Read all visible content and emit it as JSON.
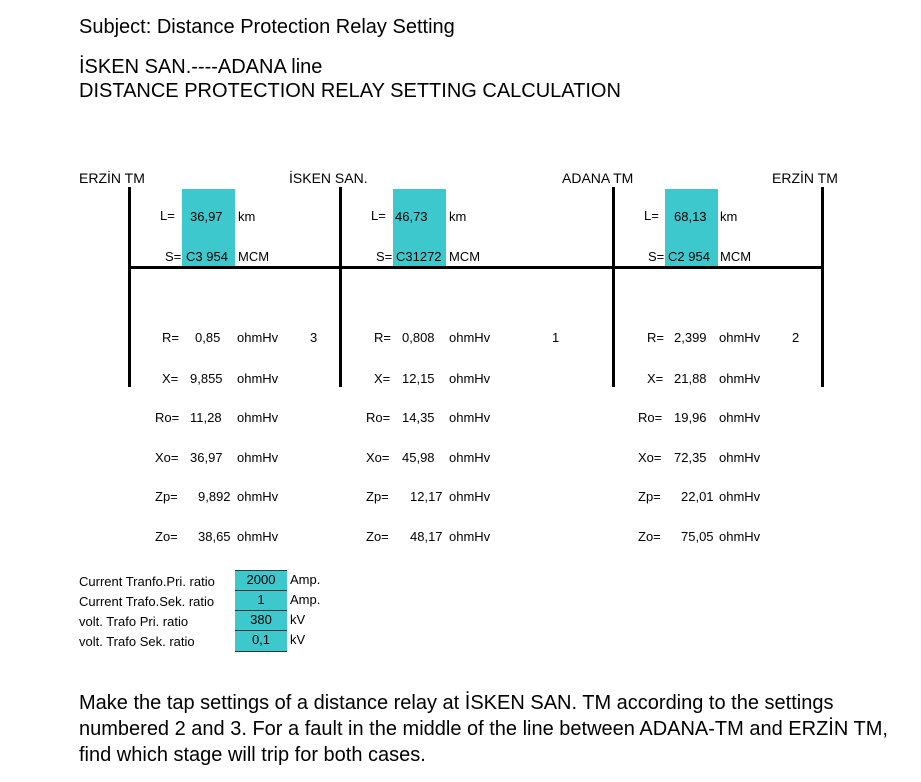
{
  "subject": "Subject: Distance Protection Relay Setting",
  "line_title": "İSKEN SAN.----ADANA line",
  "calc_title": "DISTANCE PROTECTION RELAY SETTING CALCULATION",
  "stations": {
    "erzin_left": "ERZİN   TM",
    "isken": "İSKEN SAN.",
    "adana": "ADANA TM",
    "erzin_right": "ERZİN   TM"
  },
  "sections": [
    {
      "L_label": "L=",
      "L_value": "36,97",
      "L_unit": "km",
      "S_label": "S=",
      "S_value": "C3 954",
      "S_unit": "MCM",
      "number": "3",
      "R_label": "R=",
      "R_value": "0,85",
      "R_unit": "ohmHv",
      "X_label": "X=",
      "X_value": "9,855",
      "X_unit": "ohmHv",
      "Ro_label": "Ro=",
      "Ro_value": "11,28",
      "Ro_unit": "ohmHv",
      "Xo_label": "Xo=",
      "Xo_value": "36,97",
      "Xo_unit": "ohmHv",
      "Zp_label": "Zp=",
      "Zp_value": "9,892",
      "Zp_unit": "ohmHv",
      "Zo_label": "Zo=",
      "Zo_value": "38,65",
      "Zo_unit": "ohmHv"
    },
    {
      "L_label": "L=",
      "L_value": "46,73",
      "L_unit": "km",
      "S_label": "S=",
      "S_value": "C31272",
      "S_unit": "MCM",
      "number": "1",
      "R_label": "R=",
      "R_value": "0,808",
      "R_unit": "ohmHv",
      "X_label": "X=",
      "X_value": "12,15",
      "X_unit": "ohmHv",
      "Ro_label": "Ro=",
      "Ro_value": "14,35",
      "Ro_unit": "ohmHv",
      "Xo_label": "Xo=",
      "Xo_value": "45,98",
      "Xo_unit": "ohmHv",
      "Zp_label": "Zp=",
      "Zp_value": "12,17",
      "Zp_unit": "ohmHv",
      "Zo_label": "Zo=",
      "Zo_value": "48,17",
      "Zo_unit": "ohmHv"
    },
    {
      "L_label": "L=",
      "L_value": "68,13",
      "L_unit": "km",
      "S_label": "S=",
      "S_value": "C2 954",
      "S_unit": "MCM",
      "number": "2",
      "R_label": "R=",
      "R_value": "2,399",
      "R_unit": "ohmHv",
      "X_label": "X=",
      "X_value": "21,88",
      "X_unit": "ohmHv",
      "Ro_label": "Ro=",
      "Ro_value": "19,96",
      "Ro_unit": "ohmHv",
      "Xo_label": "Xo=",
      "Xo_value": "72,35",
      "Xo_unit": "ohmHv",
      "Zp_label": "Zp=",
      "Zp_value": "22,01",
      "Zp_unit": "ohmHv",
      "Zo_label": "Zo=",
      "Zo_value": "75,05",
      "Zo_unit": "ohmHv"
    }
  ],
  "transformers": [
    {
      "label": "Current Tranfo.Pri. ratio",
      "value": "2000",
      "unit": "Amp."
    },
    {
      "label": "Current Trafo.Sek. ratio",
      "value": "1",
      "unit": "Amp."
    },
    {
      "label": "volt. Trafo Pri. ratio",
      "value": "380",
      "unit": "kV"
    },
    {
      "label": "volt. Trafo Sek. ratio",
      "value": "0,1",
      "unit": "kV"
    }
  ],
  "problem": "Make the tap settings of a distance relay at İSKEN SAN. TM according to the settings numbered 2 and 3. For a fault in the middle of the line between ADANA-TM and ERZİN TM, find which stage will trip for both cases.",
  "colors": {
    "highlight": "#3cc8cc"
  }
}
